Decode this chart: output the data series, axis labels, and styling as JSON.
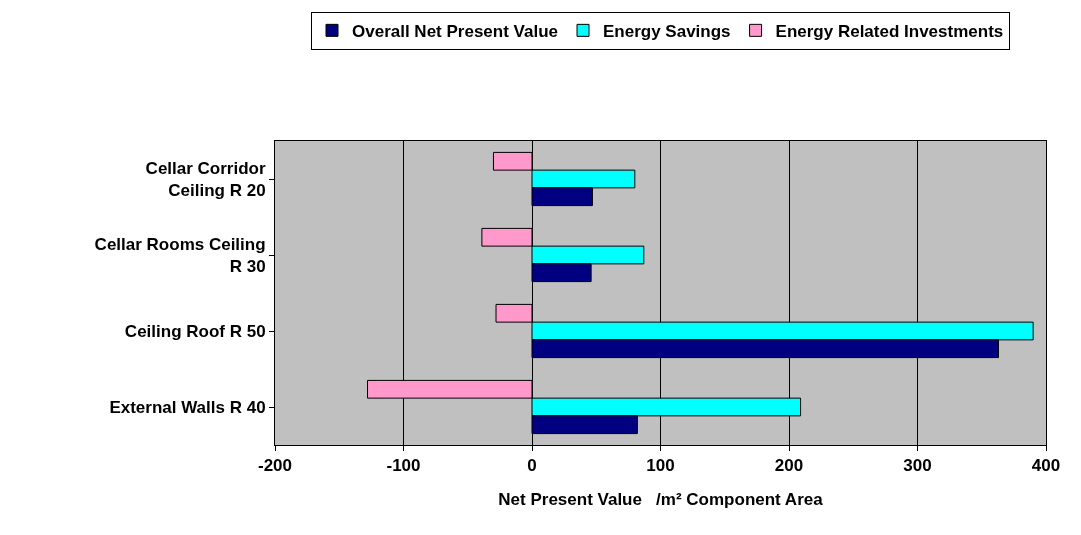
{
  "chart_data": {
    "type": "bar",
    "orientation": "horizontal",
    "xlabel": "Net Present Value   /m² Component Area",
    "categories": [
      "Cellar Corridor Ceiling R 20",
      "Cellar Rooms Ceiling R 30",
      "Ceiling Roof R 50",
      "External Walls R 40"
    ],
    "series": [
      {
        "name": "Overall Net Present Value",
        "color": "#000080",
        "values": [
          47,
          46,
          363,
          82
        ]
      },
      {
        "name": "Energy Savings",
        "color": "#00ffff",
        "values": [
          80,
          87,
          390,
          209
        ]
      },
      {
        "name": "Energy Related Investments",
        "color": "#ff99cc",
        "values": [
          -30,
          -39,
          -28,
          -128
        ]
      }
    ],
    "xlim": [
      -200,
      400
    ],
    "xticks": [
      -200,
      -100,
      0,
      100,
      200,
      300,
      400
    ],
    "grid": "x",
    "legend": "top"
  }
}
